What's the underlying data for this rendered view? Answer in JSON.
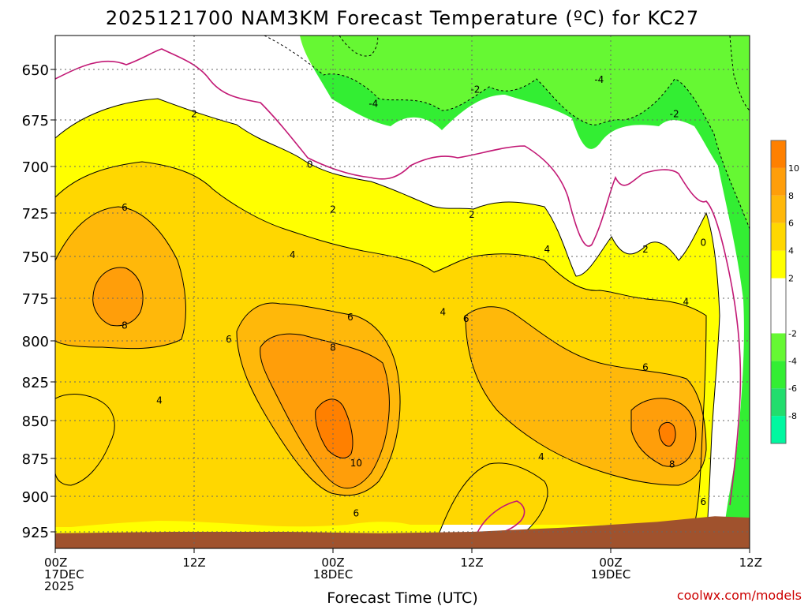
{
  "chart_data": {
    "type": "heatmap",
    "title": "2025121700 NAM3KM Forecast Temperature (ºC) for KC27",
    "xlabel": "Forecast Time (UTC)",
    "credit": "coolwx.com/models",
    "x_ticks": [
      {
        "hour": 0,
        "line1": "00Z",
        "line2": "17DEC",
        "line3": "2025"
      },
      {
        "hour": 12,
        "line1": "12Z",
        "line2": "",
        "line3": ""
      },
      {
        "hour": 24,
        "line1": "00Z",
        "line2": "18DEC",
        "line3": ""
      },
      {
        "hour": 36,
        "line1": "12Z",
        "line2": "",
        "line3": ""
      },
      {
        "hour": 48,
        "line1": "00Z",
        "line2": "19DEC",
        "line3": ""
      },
      {
        "hour": 60,
        "line1": "12Z",
        "line2": "",
        "line3": ""
      }
    ],
    "xlim_hours": [
      0,
      60
    ],
    "y_ticks": [
      "650",
      "675",
      "700",
      "725",
      "750",
      "775",
      "800",
      "825",
      "850",
      "875",
      "900",
      "925"
    ],
    "ylim_hpa": [
      630,
      935
    ],
    "grid": true,
    "colorbar": {
      "labels": [
        "10",
        "8",
        "6",
        "4",
        "2",
        "-2",
        "-4",
        "-6",
        "-8"
      ],
      "bins": [
        {
          "lo": -10,
          "hi": -8,
          "color": "#00f7a0"
        },
        {
          "lo": -8,
          "hi": -6,
          "color": "#22dd6d"
        },
        {
          "lo": -6,
          "hi": -4,
          "color": "#33ee33"
        },
        {
          "lo": -4,
          "hi": -2,
          "color": "#66f833"
        },
        {
          "lo": -2,
          "hi": 2,
          "color": "#ffffff"
        },
        {
          "lo": 2,
          "hi": 4,
          "color": "#ffff00"
        },
        {
          "lo": 4,
          "hi": 6,
          "color": "#ffd700"
        },
        {
          "lo": 6,
          "hi": 8,
          "color": "#ffb80a"
        },
        {
          "lo": 8,
          "hi": 10,
          "color": "#ff9e0a"
        },
        {
          "lo": 10,
          "hi": 12,
          "color": "#ff8000"
        }
      ]
    },
    "zero_line_color": "#c21875",
    "terrain_color": "#a0522d",
    "terrain_pressure_hpa": [
      {
        "hour": 0,
        "p": 926
      },
      {
        "hour": 10,
        "p": 925
      },
      {
        "hour": 20,
        "p": 925
      },
      {
        "hour": 28,
        "p": 926
      },
      {
        "hour": 36,
        "p": 925
      },
      {
        "hour": 44,
        "p": 922
      },
      {
        "hour": 52,
        "p": 918
      },
      {
        "hour": 57,
        "p": 914
      },
      {
        "hour": 60,
        "p": 915
      }
    ],
    "contour_labels": [
      {
        "text": "2",
        "hour": 12.0,
        "p": 672
      },
      {
        "text": "0",
        "hour": 22.0,
        "p": 699
      },
      {
        "text": "-4",
        "hour": 27.5,
        "p": 667
      },
      {
        "text": "-2",
        "hour": 36.3,
        "p": 660
      },
      {
        "text": "-4",
        "hour": 47.0,
        "p": 655
      },
      {
        "text": "-2",
        "hour": 53.5,
        "p": 672
      },
      {
        "text": "6",
        "hour": 6.0,
        "p": 722
      },
      {
        "text": "2",
        "hour": 24.0,
        "p": 723
      },
      {
        "text": "2",
        "hour": 36.0,
        "p": 726
      },
      {
        "text": "4",
        "hour": 20.5,
        "p": 749
      },
      {
        "text": "4",
        "hour": 42.5,
        "p": 746
      },
      {
        "text": "2",
        "hour": 51.0,
        "p": 746
      },
      {
        "text": "0",
        "hour": 56.0,
        "p": 742
      },
      {
        "text": "8",
        "hour": 6.0,
        "p": 791
      },
      {
        "text": "6",
        "hour": 25.5,
        "p": 786
      },
      {
        "text": "4",
        "hour": 33.5,
        "p": 783
      },
      {
        "text": "6",
        "hour": 35.5,
        "p": 787
      },
      {
        "text": "4",
        "hour": 54.5,
        "p": 777
      },
      {
        "text": "6",
        "hour": 15.0,
        "p": 799
      },
      {
        "text": "8",
        "hour": 24.0,
        "p": 804
      },
      {
        "text": "4",
        "hour": 9.0,
        "p": 837
      },
      {
        "text": "6",
        "hour": 51.0,
        "p": 816
      },
      {
        "text": "10",
        "hour": 26.0,
        "p": 878
      },
      {
        "text": "4",
        "hour": 42.0,
        "p": 874
      },
      {
        "text": "8",
        "hour": 53.3,
        "p": 879
      },
      {
        "text": "6",
        "hour": 26.0,
        "p": 912
      },
      {
        "text": "6",
        "hour": 56.0,
        "p": 904
      }
    ]
  }
}
